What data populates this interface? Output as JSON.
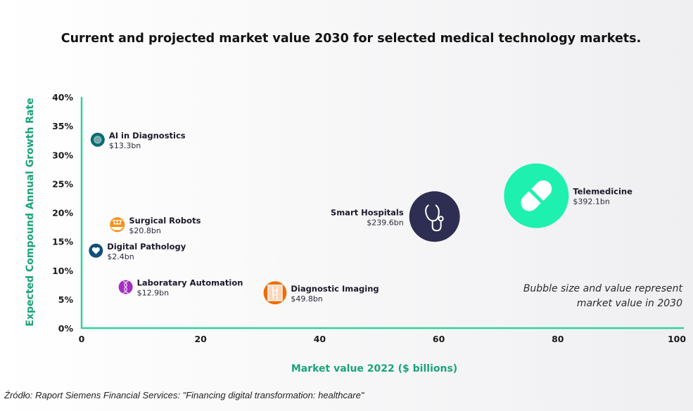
{
  "chart_data": {
    "type": "scatter",
    "title": "Current and projected market value 2030 for selected medical technology markets.",
    "xlabel": "Market value 2022 ($ billions)",
    "ylabel": "Expected Compound Annual Growth Rate",
    "xlim": [
      0,
      100
    ],
    "ylim": [
      0,
      40
    ],
    "x_ticks": [
      "0",
      "20",
      "40",
      "60",
      "80",
      "100"
    ],
    "y_ticks": [
      "0%",
      "5%",
      "10%",
      "15%",
      "20%",
      "25%",
      "30%",
      "35%",
      "40%"
    ],
    "grid": false,
    "note_lines": [
      "Bubble size and value represent",
      "market value in 2030"
    ],
    "series": [
      {
        "name": "AI in Diagnostics",
        "value_label": "$13.3bn",
        "value_2030": 13.3,
        "x": 2.7,
        "y": 32.6,
        "color": "#0e6b72",
        "icon": "brain-chip-icon",
        "label_side": "right"
      },
      {
        "name": "Surgical Robots",
        "value_label": "$20.8bn",
        "value_2030": 20.8,
        "x": 6.0,
        "y": 17.9,
        "color": "#f7931e",
        "icon": "robot-arm-icon",
        "label_side": "right"
      },
      {
        "name": "Digital Pathology",
        "value_label": "$2.4bn",
        "value_2030": 2.4,
        "x": 2.4,
        "y": 13.4,
        "color": "#10507a",
        "icon": "heart-icon",
        "label_side": "right"
      },
      {
        "name": "Laboratary Automation",
        "value_label": "$12.9bn",
        "value_2030": 12.9,
        "x": 7.4,
        "y": 7.1,
        "color": "#a52ec2",
        "icon": "dna-icon",
        "label_side": "right"
      },
      {
        "name": "Diagnostic Imaging",
        "value_label": "$49.8bn",
        "value_2030": 49.8,
        "x": 32.5,
        "y": 6.1,
        "color": "#ef6c00",
        "icon": "xray-icon",
        "label_side": "right"
      },
      {
        "name": "Smart Hospitals",
        "value_label": "$239.6bn",
        "value_2030": 239.6,
        "x": 59.3,
        "y": 19.3,
        "color": "#2e2e52",
        "icon": "stethoscope-icon",
        "label_side": "left"
      },
      {
        "name": "Telemedicine",
        "value_label": "$392.1bn",
        "value_2030": 392.1,
        "x": 76.4,
        "y": 22.9,
        "color": "#1ef0b0",
        "icon": "pill-icon",
        "label_side": "right"
      }
    ]
  },
  "colors": {
    "axis": "#2fd39a",
    "axis_label": "#1aa37a"
  },
  "source": "Źródło: Raport Siemens Financial Services: \"Financing digital transformation: healthcare\""
}
